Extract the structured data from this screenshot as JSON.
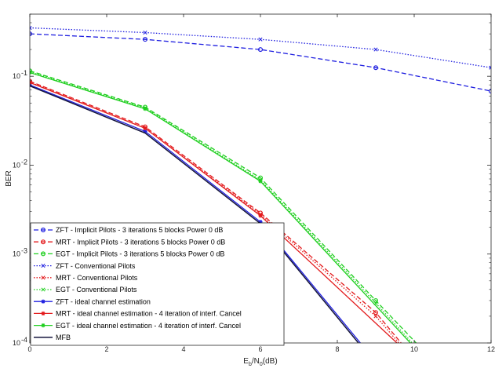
{
  "chart_data": {
    "type": "line",
    "xlabel": "Eb/N0(dB)",
    "xlabel_parts": {
      "main": "E",
      "sub1": "b",
      "mid": "/N",
      "sub2": "0",
      "tail": "(dB)"
    },
    "ylabel": "BER",
    "y_scale": "log",
    "xlim": [
      0,
      12
    ],
    "ylim": [
      0.0001,
      0.5
    ],
    "grid": false,
    "legend_position": "bottom-left",
    "x_ticks": [
      0,
      2,
      4,
      6,
      8,
      10,
      12
    ],
    "x_tick_labels": [
      "0",
      "2",
      "4",
      "6",
      "8",
      "10",
      "12"
    ],
    "y_ticks": [
      0.0001,
      0.001,
      0.01,
      0.1
    ],
    "y_tick_labels": [
      {
        "base": "10",
        "exp": "-4"
      },
      {
        "base": "10",
        "exp": "-3"
      },
      {
        "base": "10",
        "exp": "-2"
      },
      {
        "base": "10",
        "exp": "-1"
      }
    ],
    "series": [
      {
        "name": "ZFT - Implicit Pilots - 3 iterations 5 blocks Power 0 dB",
        "color": "#1f1fe0",
        "dash": "dashed",
        "marker": "circle",
        "x": [
          0,
          3,
          6,
          9,
          12
        ],
        "y": [
          0.3,
          0.26,
          0.2,
          0.125,
          0.068
        ]
      },
      {
        "name": "MRT - Implicit Pilots - 3 iterations 5 blocks Power 0 dB",
        "color": "#e31a1c",
        "dash": "dashed",
        "marker": "circle",
        "x": [
          0,
          3,
          6,
          9,
          9.66
        ],
        "y": [
          0.088,
          0.027,
          0.0029,
          0.00022,
          0.0001
        ]
      },
      {
        "name": "EGT - Implicit Pilots - 3 iterations 5 blocks Power 0 dB",
        "color": "#1fcf1f",
        "dash": "dashed",
        "marker": "circle",
        "x": [
          0,
          3,
          6,
          9,
          10.05
        ],
        "y": [
          0.115,
          0.045,
          0.0072,
          0.0003,
          0.0001
        ]
      },
      {
        "name": "ZFT - Conventional Pilots",
        "color": "#1f1fe0",
        "dash": "dotted",
        "marker": "x",
        "x": [
          0,
          3,
          6,
          9,
          12
        ],
        "y": [
          0.35,
          0.31,
          0.26,
          0.2,
          0.125
        ]
      },
      {
        "name": "MRT - Conventional Pilots",
        "color": "#e31a1c",
        "dash": "dotted",
        "marker": "x",
        "x": [
          0,
          3,
          6,
          9,
          9.6
        ],
        "y": [
          0.086,
          0.026,
          0.0028,
          0.0002,
          0.0001
        ]
      },
      {
        "name": "EGT - Conventional Pilots",
        "color": "#1fcf1f",
        "dash": "dotted",
        "marker": "x",
        "x": [
          0,
          3,
          6,
          9,
          9.95
        ],
        "y": [
          0.112,
          0.044,
          0.0068,
          0.00028,
          0.0001
        ]
      },
      {
        "name": "ZFT - ideal channel estimation",
        "color": "#1f1fe0",
        "dash": "solid",
        "marker": "star",
        "x": [
          0,
          3,
          6,
          8.6
        ],
        "y": [
          0.08,
          0.024,
          0.0023,
          0.0001
        ]
      },
      {
        "name": "MRT - ideal channel estimation - 4 iteration of interf. Cancel",
        "color": "#e31a1c",
        "dash": "solid",
        "marker": "star",
        "x": [
          0,
          3,
          6,
          9.55
        ],
        "y": [
          0.085,
          0.026,
          0.0027,
          0.0001
        ]
      },
      {
        "name": "EGT - ideal channel estimation - 4 iteration of interf. Cancel",
        "color": "#1fcf1f",
        "dash": "solid",
        "marker": "star",
        "x": [
          0,
          3,
          6,
          9.9
        ],
        "y": [
          0.11,
          0.043,
          0.0066,
          0.0001
        ]
      },
      {
        "name": "MFB",
        "color": "#14143c",
        "dash": "solid",
        "marker": "none",
        "x": [
          0,
          3,
          6,
          8.55
        ],
        "y": [
          0.078,
          0.023,
          0.0022,
          0.0001
        ]
      }
    ]
  }
}
